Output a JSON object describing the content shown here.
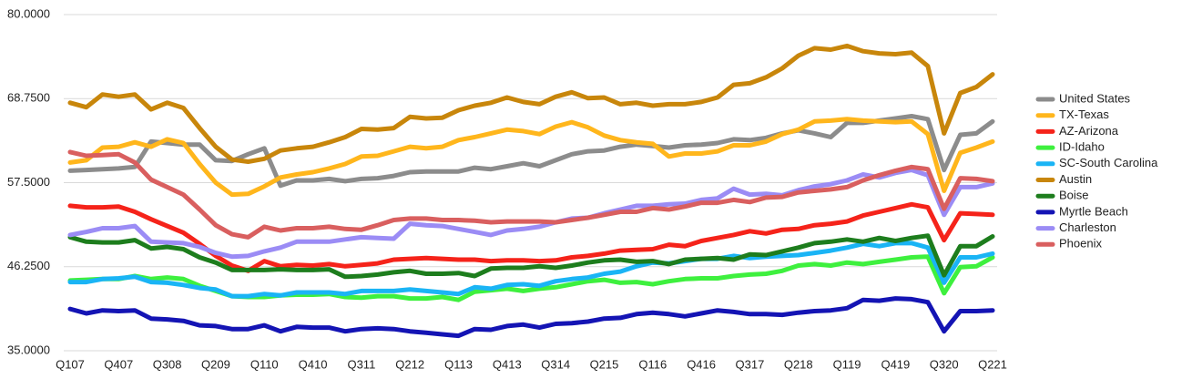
{
  "chart_data": {
    "type": "line",
    "categories": [
      "Q107",
      null,
      null,
      "Q407",
      null,
      null,
      "Q308",
      null,
      null,
      "Q209",
      null,
      null,
      "Q110",
      null,
      null,
      "Q410",
      null,
      null,
      "Q311",
      null,
      null,
      "Q212",
      null,
      null,
      "Q113",
      null,
      null,
      "Q413",
      null,
      null,
      "Q314",
      null,
      null,
      "Q215",
      null,
      null,
      "Q116",
      null,
      null,
      "Q416",
      null,
      null,
      "Q317",
      null,
      null,
      "Q218",
      null,
      null,
      "Q119",
      null,
      null,
      "Q419",
      null,
      null,
      "Q320",
      null,
      null,
      "Q221"
    ],
    "ylim": [
      35,
      80
    ],
    "yticks": [
      {
        "value": 35,
        "label": "35.0000"
      },
      {
        "value": 46.25,
        "label": "46.2500"
      },
      {
        "value": 57.5,
        "label": "57.5000"
      },
      {
        "value": 68.75,
        "label": "68.7500"
      },
      {
        "value": 80,
        "label": "80.0000"
      }
    ],
    "grid": true,
    "legend": "right",
    "series": [
      {
        "name": "United States",
        "color": "#8c8c8c",
        "values": [
          59.1,
          59.2,
          59.3,
          59.4,
          59.6,
          63.0,
          62.8,
          62.6,
          62.6,
          60.5,
          60.4,
          61.3,
          62.1,
          57.1,
          57.8,
          57.8,
          58.0,
          57.7,
          58.0,
          58.1,
          58.4,
          58.9,
          59.0,
          59.0,
          59.0,
          59.5,
          59.3,
          59.7,
          60.1,
          59.7,
          60.5,
          61.3,
          61.7,
          61.8,
          62.3,
          62.6,
          62.4,
          62.2,
          62.5,
          62.6,
          62.8,
          63.3,
          63.2,
          63.5,
          64.1,
          64.5,
          64.1,
          63.6,
          65.5,
          65.5,
          65.8,
          66.1,
          66.4,
          66.0,
          59.2,
          63.9,
          64.1,
          65.7
        ]
      },
      {
        "name": "TX-Texas",
        "color": "#ffb61c",
        "values": [
          60.2,
          60.5,
          62.2,
          62.3,
          62.9,
          62.3,
          63.3,
          62.8,
          60.0,
          57.5,
          55.9,
          56.0,
          57.0,
          58.2,
          58.6,
          58.9,
          59.4,
          60.0,
          61.0,
          61.1,
          61.7,
          62.3,
          62.1,
          62.3,
          63.2,
          63.6,
          64.1,
          64.6,
          64.4,
          64.0,
          65.0,
          65.6,
          64.9,
          63.8,
          63.2,
          62.9,
          62.7,
          61.0,
          61.4,
          61.4,
          61.7,
          62.5,
          62.5,
          63.0,
          64.0,
          64.6,
          65.7,
          65.8,
          66.0,
          65.8,
          65.7,
          65.6,
          65.7,
          64.0,
          56.4,
          61.5,
          62.2,
          63.0
        ]
      },
      {
        "name": "AZ-Arizona",
        "color": "#f5231a",
        "values": [
          54.4,
          54.2,
          54.2,
          54.3,
          53.6,
          52.6,
          51.7,
          50.8,
          49.3,
          47.7,
          46.4,
          45.7,
          47.0,
          46.3,
          46.5,
          46.4,
          46.6,
          46.3,
          46.5,
          46.7,
          47.2,
          47.3,
          47.4,
          47.3,
          47.2,
          47.2,
          47.0,
          47.1,
          47.1,
          47.0,
          47.1,
          47.5,
          47.7,
          48.0,
          48.4,
          48.5,
          48.6,
          49.2,
          49.0,
          49.7,
          50.1,
          50.5,
          51.0,
          50.7,
          51.2,
          51.3,
          51.8,
          52.0,
          52.3,
          53.1,
          53.6,
          54.1,
          54.6,
          54.2,
          49.8,
          53.4,
          53.3,
          53.2
        ]
      },
      {
        "name": "ID-Idaho",
        "color": "#3ef03e",
        "values": [
          44.4,
          44.5,
          44.6,
          44.6,
          45.0,
          44.6,
          44.8,
          44.6,
          43.7,
          43.0,
          42.3,
          42.2,
          42.2,
          42.4,
          42.5,
          42.5,
          42.6,
          42.2,
          42.1,
          42.3,
          42.3,
          42.0,
          42.0,
          42.2,
          41.8,
          42.9,
          43.1,
          43.3,
          43.0,
          43.3,
          43.5,
          43.9,
          44.3,
          44.5,
          44.1,
          44.2,
          43.9,
          44.3,
          44.6,
          44.7,
          44.7,
          45.0,
          45.2,
          45.3,
          45.7,
          46.4,
          46.6,
          46.4,
          46.8,
          46.6,
          46.9,
          47.2,
          47.5,
          47.6,
          42.7,
          46.2,
          46.3,
          47.5
        ]
      },
      {
        "name": "SC-South Carolina",
        "color": "#1ab4f5",
        "values": [
          44.2,
          44.2,
          44.6,
          44.7,
          44.9,
          44.2,
          44.1,
          43.8,
          43.4,
          43.2,
          42.3,
          42.3,
          42.6,
          42.4,
          42.8,
          42.8,
          42.8,
          42.6,
          43.0,
          43.0,
          43.0,
          43.2,
          43.0,
          42.8,
          42.6,
          43.5,
          43.3,
          43.8,
          43.9,
          43.7,
          44.3,
          44.6,
          44.8,
          45.3,
          45.6,
          46.3,
          46.8,
          46.7,
          47.0,
          47.3,
          47.3,
          47.7,
          47.4,
          47.6,
          47.7,
          47.8,
          48.1,
          48.4,
          48.8,
          49.3,
          49.0,
          49.4,
          49.4,
          48.8,
          44.1,
          47.5,
          47.5,
          48.0
        ]
      },
      {
        "name": "Austin",
        "color": "#c8860b",
        "values": [
          68.2,
          67.6,
          69.3,
          69.0,
          69.3,
          67.3,
          68.2,
          67.5,
          64.8,
          62.3,
          60.6,
          60.3,
          60.7,
          61.8,
          62.1,
          62.3,
          62.9,
          63.6,
          64.7,
          64.6,
          64.8,
          66.3,
          66.1,
          66.2,
          67.2,
          67.8,
          68.2,
          68.9,
          68.3,
          68.0,
          69.0,
          69.6,
          68.8,
          68.9,
          68.0,
          68.2,
          67.8,
          68.0,
          68.0,
          68.3,
          68.9,
          70.6,
          70.8,
          71.6,
          72.8,
          74.5,
          75.5,
          75.3,
          75.8,
          75.1,
          74.8,
          74.7,
          74.9,
          73.1,
          64.1,
          69.5,
          70.3,
          72.0
        ]
      },
      {
        "name": "Boise",
        "color": "#1d7d1d",
        "values": [
          50.2,
          49.6,
          49.5,
          49.5,
          49.8,
          48.7,
          48.9,
          48.6,
          47.5,
          46.8,
          45.8,
          45.8,
          45.8,
          45.9,
          45.8,
          45.8,
          45.9,
          44.9,
          45.0,
          45.2,
          45.5,
          45.7,
          45.3,
          45.3,
          45.4,
          45.0,
          46.0,
          46.1,
          46.1,
          46.3,
          46.1,
          46.4,
          46.8,
          47.1,
          47.2,
          46.9,
          47.0,
          46.6,
          47.2,
          47.3,
          47.4,
          47.2,
          47.9,
          47.8,
          48.3,
          48.8,
          49.4,
          49.6,
          49.9,
          49.6,
          50.1,
          49.7,
          50.1,
          50.4,
          45.1,
          49.0,
          49.0,
          50.3
        ]
      },
      {
        "name": "Myrtle Beach",
        "color": "#1414b4",
        "values": [
          40.6,
          40.0,
          40.4,
          40.3,
          40.4,
          39.3,
          39.2,
          39.0,
          38.4,
          38.3,
          37.9,
          37.9,
          38.4,
          37.6,
          38.2,
          38.1,
          38.1,
          37.6,
          37.9,
          38.0,
          37.9,
          37.6,
          37.4,
          37.2,
          37.0,
          37.9,
          37.8,
          38.3,
          38.5,
          38.1,
          38.6,
          38.7,
          38.9,
          39.3,
          39.4,
          39.9,
          40.1,
          39.9,
          39.6,
          40.0,
          40.4,
          40.2,
          39.9,
          39.9,
          39.8,
          40.1,
          40.3,
          40.4,
          40.7,
          41.8,
          41.7,
          42.0,
          41.9,
          41.5,
          37.6,
          40.3,
          40.3,
          40.4
        ]
      },
      {
        "name": "Charleston",
        "color": "#9b8cf5",
        "values": [
          50.5,
          50.9,
          51.4,
          51.4,
          51.7,
          49.6,
          49.5,
          49.4,
          48.9,
          48.1,
          47.6,
          47.7,
          48.3,
          48.8,
          49.6,
          49.6,
          49.6,
          49.9,
          50.2,
          50.1,
          50.0,
          52.0,
          51.8,
          51.7,
          51.3,
          50.9,
          50.5,
          51.1,
          51.3,
          51.6,
          52.2,
          52.7,
          52.8,
          53.4,
          53.9,
          54.4,
          54.4,
          54.6,
          54.7,
          55.2,
          55.4,
          56.7,
          55.9,
          56.0,
          55.8,
          56.5,
          57.0,
          57.3,
          57.8,
          58.6,
          58.2,
          58.8,
          59.2,
          58.5,
          53.2,
          56.9,
          56.9,
          57.4
        ]
      },
      {
        "name": "Phoenix",
        "color": "#d95f5f",
        "values": [
          61.6,
          61.1,
          61.2,
          61.3,
          60.2,
          57.9,
          56.9,
          55.9,
          53.9,
          51.8,
          50.6,
          50.2,
          51.6,
          51.1,
          51.4,
          51.4,
          51.6,
          51.3,
          51.2,
          51.8,
          52.5,
          52.7,
          52.7,
          52.5,
          52.5,
          52.4,
          52.2,
          52.3,
          52.3,
          52.3,
          52.2,
          52.5,
          52.8,
          53.2,
          53.6,
          53.6,
          54.1,
          53.9,
          54.3,
          54.8,
          54.8,
          55.2,
          54.9,
          55.5,
          55.6,
          56.2,
          56.4,
          56.6,
          56.9,
          57.8,
          58.5,
          59.1,
          59.6,
          59.3,
          54.0,
          58.1,
          58.0,
          57.7
        ]
      }
    ]
  }
}
